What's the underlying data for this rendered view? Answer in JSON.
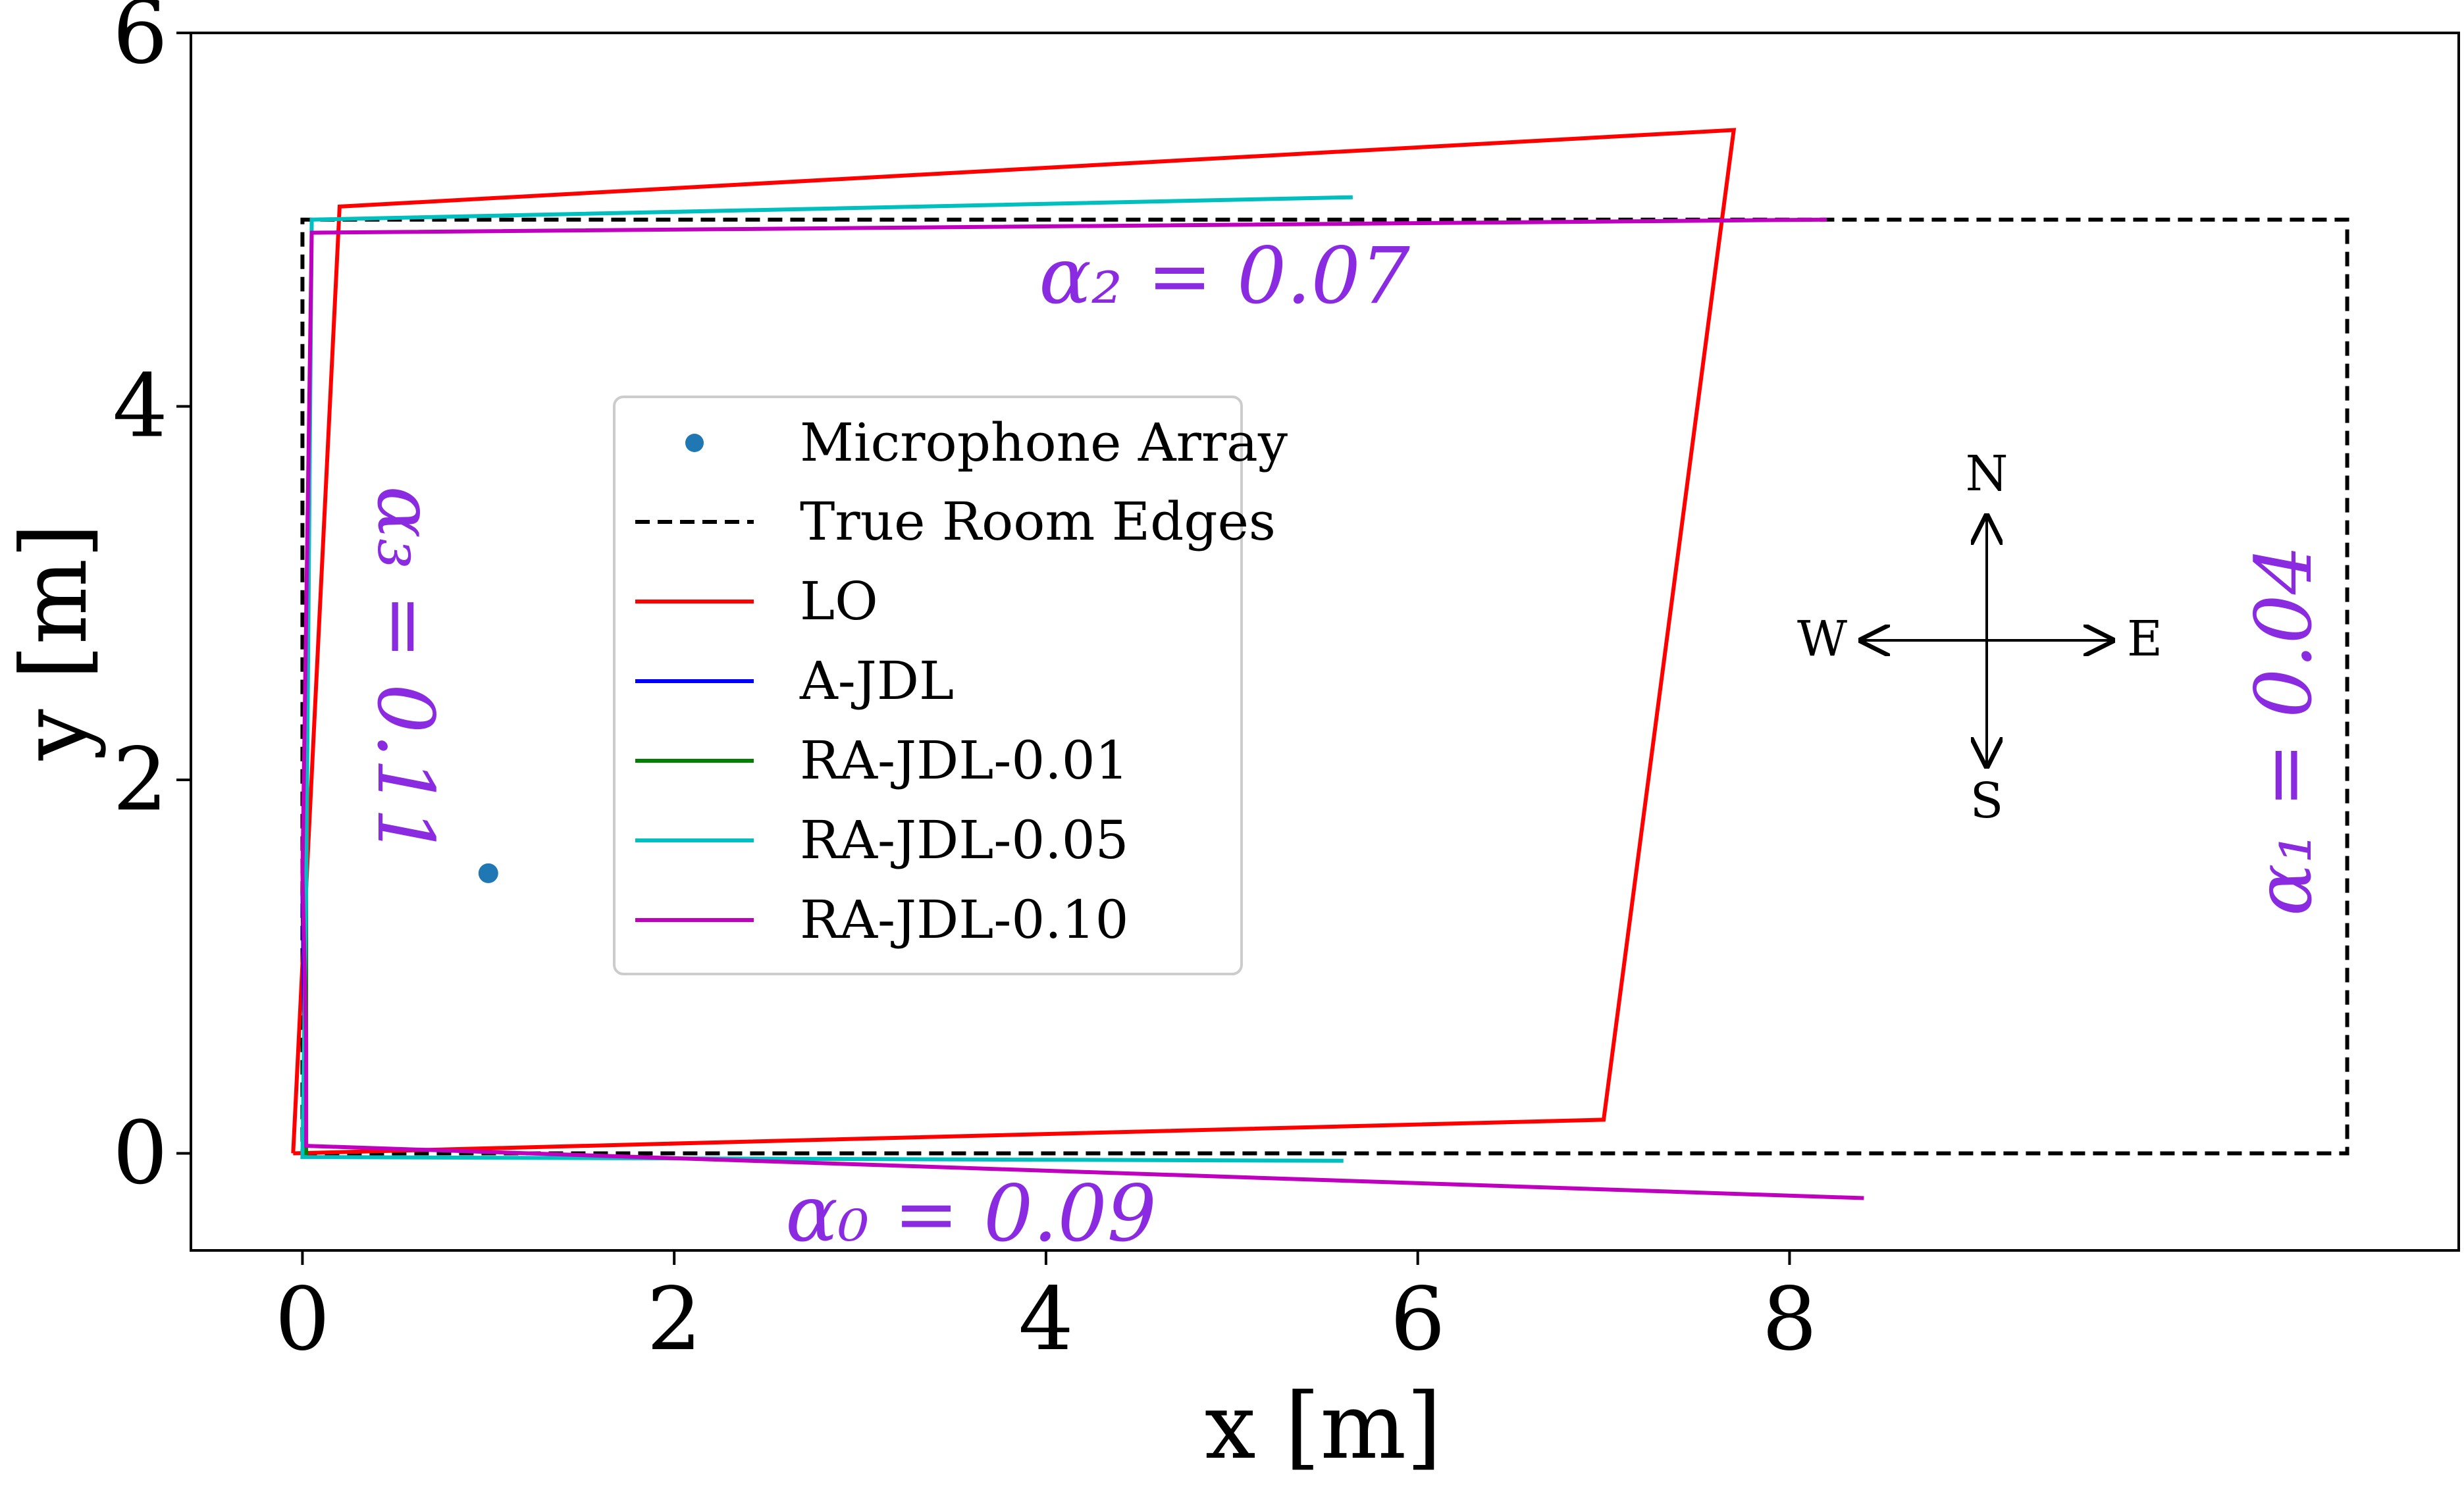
{
  "chart_data": {
    "type": "line",
    "xlabel": "x [m]",
    "ylabel": "y [m]",
    "xlim": [
      -0.6,
      11.6
    ],
    "ylim": [
      -0.52,
      6.0
    ],
    "xticks": [
      0,
      2,
      4,
      6,
      8
    ],
    "yticks": [
      0,
      2,
      4,
      6
    ],
    "microphone": {
      "label": "Microphone Array",
      "x": 1.0,
      "y": 1.5,
      "color": "#1f77b4"
    },
    "series": [
      {
        "name": "True Room Edges",
        "color": "#000000",
        "dash": true,
        "x": [
          0,
          11.0,
          11.0,
          0,
          0
        ],
        "y": [
          0,
          0,
          5.0,
          5.0,
          0
        ]
      },
      {
        "name": "LO",
        "color": "#ff0000",
        "dash": false,
        "x": [
          -0.05,
          7.0,
          7.7,
          0.2,
          -0.05
        ],
        "y": [
          0,
          0.18,
          5.48,
          5.07,
          0
        ]
      },
      {
        "name": "A-JDL",
        "color": "#0000ff",
        "dash": false,
        "x": [
          0.02,
          0.0
        ],
        "y": [
          0.0,
          1.4
        ]
      },
      {
        "name": "RA-JDL-0.01",
        "color": "#008000",
        "dash": false,
        "x": [
          0.0,
          0.02,
          0.02
        ],
        "y": [
          -0.02,
          0.0,
          2.55
        ]
      },
      {
        "name": "RA-JDL-0.05",
        "color": "#00bfbf",
        "dash": false,
        "x": [
          5.6,
          0.0,
          0.02,
          0.05,
          5.65
        ],
        "y": [
          -0.04,
          -0.02,
          1.4,
          5.0,
          5.12
        ]
      },
      {
        "name": "RA-JDL-0.10",
        "color": "#bf00bf",
        "dash": false,
        "x": [
          8.4,
          0.02,
          0.02,
          0.0,
          0.05,
          8.2
        ],
        "y": [
          -0.24,
          0.04,
          0.6,
          1.5,
          4.93,
          5.0
        ]
      }
    ],
    "legend_position": "center-left"
  },
  "annotations": {
    "alpha0": "α₀ = 0.09",
    "alpha1": "α₁ = 0.04",
    "alpha2": "α₂ = 0.07",
    "alpha3": "α₃ = 0.11"
  },
  "compass": {
    "north": "N",
    "south": "S",
    "east": "E",
    "west": "W"
  }
}
